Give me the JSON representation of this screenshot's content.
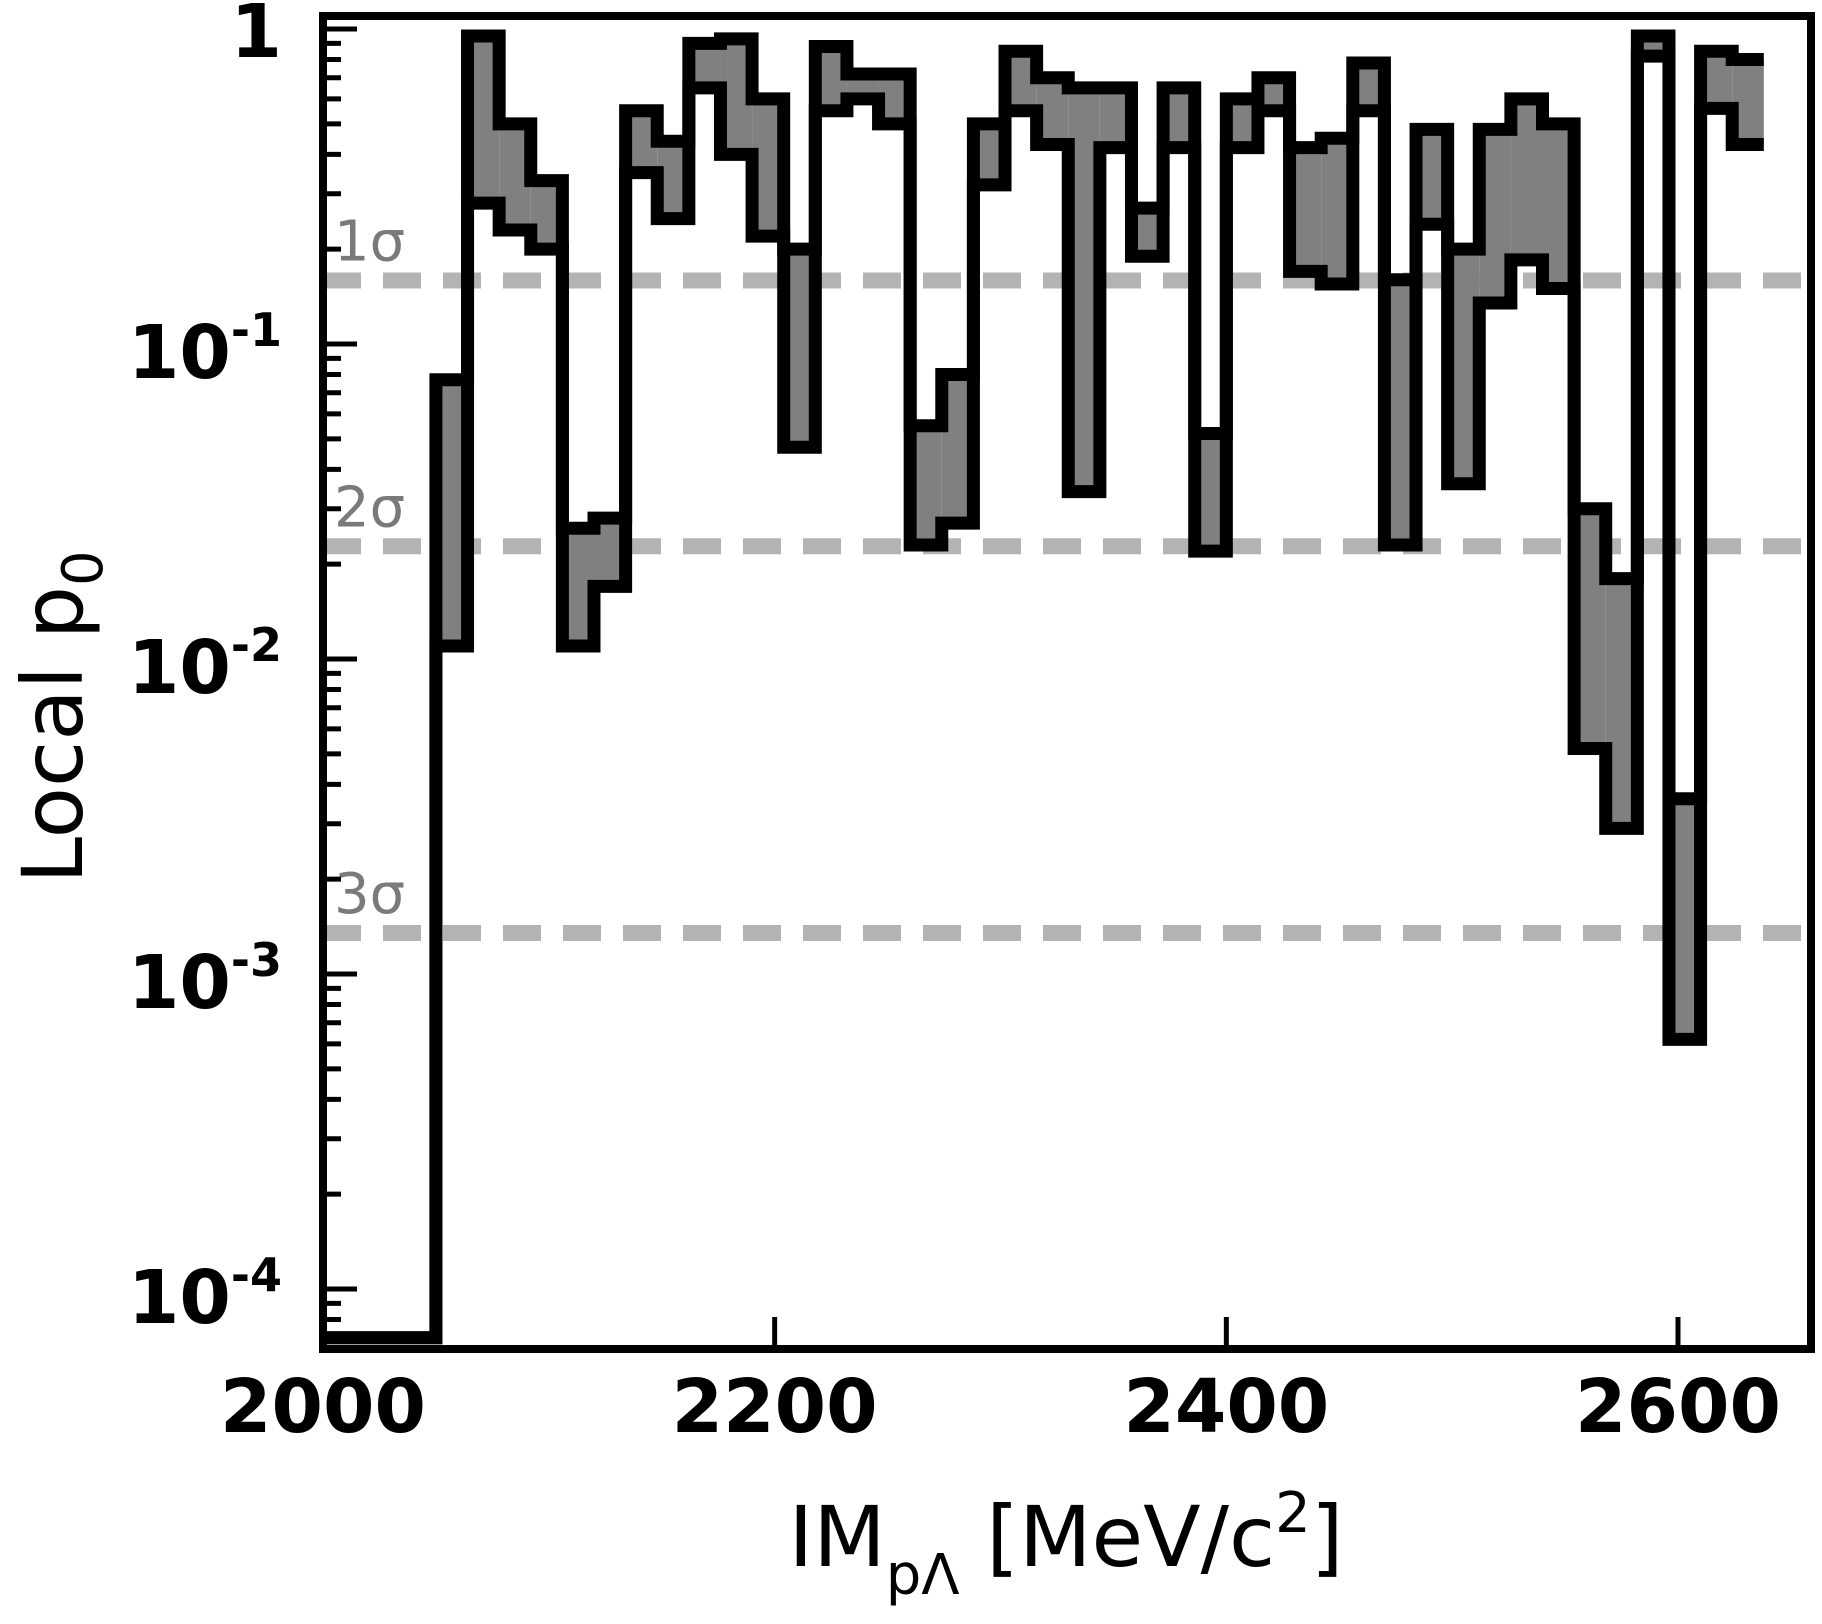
{
  "chart_data": {
    "type": "histogram-band",
    "xlabel": "IM",
    "xlabel_sub": "pΛ",
    "xlabel_unit": " [MeV/c",
    "xlabel_unit_sup": "2",
    "xlabel_unit_end": "]",
    "ylabel": "Local p",
    "ylabel_sub": "0",
    "y_scale": "log",
    "xlim": [
      2000,
      2650
    ],
    "ylim": [
      7e-05,
      1.0
    ],
    "x_ticks": [
      {
        "value": 2000,
        "label": "2000"
      },
      {
        "value": 2200,
        "label": "2200"
      },
      {
        "value": 2400,
        "label": "2400"
      },
      {
        "value": 2600,
        "label": "2600"
      }
    ],
    "y_ticks": [
      {
        "value": 0.1,
        "base": "10",
        "exp": "-1"
      },
      {
        "value": 0.01,
        "base": "10",
        "exp": "-2"
      },
      {
        "value": 0.001,
        "base": "10",
        "exp": "-3"
      },
      {
        "value": 0.0001,
        "base": "10",
        "exp": "-4"
      }
    ],
    "y_top_label": {
      "value": 1.0,
      "label": "1"
    },
    "sigma_lines": [
      {
        "label": "1σ",
        "value": 0.159
      },
      {
        "label": "2σ",
        "value": 0.0228
      },
      {
        "label": "3σ",
        "value": 0.00135
      }
    ],
    "colors": {
      "band": "#808080",
      "outline": "#000000",
      "sigma_line": "#b3b3b3",
      "sigma_text": "#7a7a7a"
    },
    "bin_edges": [
      2000,
      2050,
      2064,
      2078,
      2092,
      2106,
      2120,
      2134,
      2148,
      2162,
      2176,
      2190,
      2204,
      2218,
      2232,
      2246,
      2260,
      2274,
      2288,
      2302,
      2316,
      2330,
      2344,
      2358,
      2372,
      2386,
      2400,
      2414,
      2428,
      2442,
      2456,
      2470,
      2484,
      2498,
      2512,
      2526,
      2540,
      2554,
      2568,
      2582,
      2596,
      2610,
      2624,
      2638
    ],
    "lower": [
      7e-05,
      0.011,
      0.28,
      0.23,
      0.2,
      0.011,
      0.017,
      0.35,
      0.25,
      0.65,
      0.4,
      0.22,
      0.047,
      0.55,
      0.6,
      0.5,
      0.023,
      0.027,
      0.32,
      0.55,
      0.43,
      0.034,
      0.42,
      0.19,
      0.42,
      0.022,
      0.42,
      0.55,
      0.17,
      0.155,
      0.55,
      0.023,
      0.24,
      0.036,
      0.135,
      0.185,
      0.15,
      0.0052,
      0.0029,
      0.82,
      0.00062,
      0.56,
      0.43
    ],
    "upper": [
      7e-05,
      0.077,
      0.95,
      0.5,
      0.33,
      0.026,
      0.028,
      0.55,
      0.44,
      0.9,
      0.93,
      0.6,
      0.2,
      0.88,
      0.72,
      0.72,
      0.055,
      0.08,
      0.5,
      0.85,
      0.7,
      0.65,
      0.65,
      0.27,
      0.65,
      0.052,
      0.6,
      0.7,
      0.42,
      0.45,
      0.78,
      0.16,
      0.48,
      0.2,
      0.48,
      0.6,
      0.5,
      0.03,
      0.018,
      0.95,
      0.0036,
      0.85,
      0.8
    ]
  }
}
